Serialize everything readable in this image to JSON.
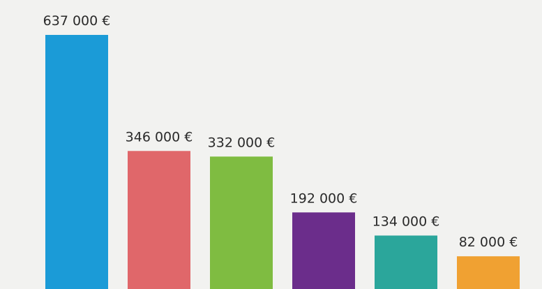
{
  "chart_data": {
    "type": "bar",
    "categories": [
      null,
      null,
      null,
      null,
      null,
      null
    ],
    "values": [
      637000,
      346000,
      332000,
      192000,
      134000,
      82000
    ],
    "value_labels": [
      "637 000 €",
      "346 000 €",
      "332 000 €",
      "192 000 €",
      "134 000 €",
      "82 000 €"
    ],
    "colors": [
      "#1b9bd7",
      "#e0676a",
      "#7fbc41",
      "#6b2d8b",
      "#2ba69b",
      "#f0a132"
    ]
  }
}
